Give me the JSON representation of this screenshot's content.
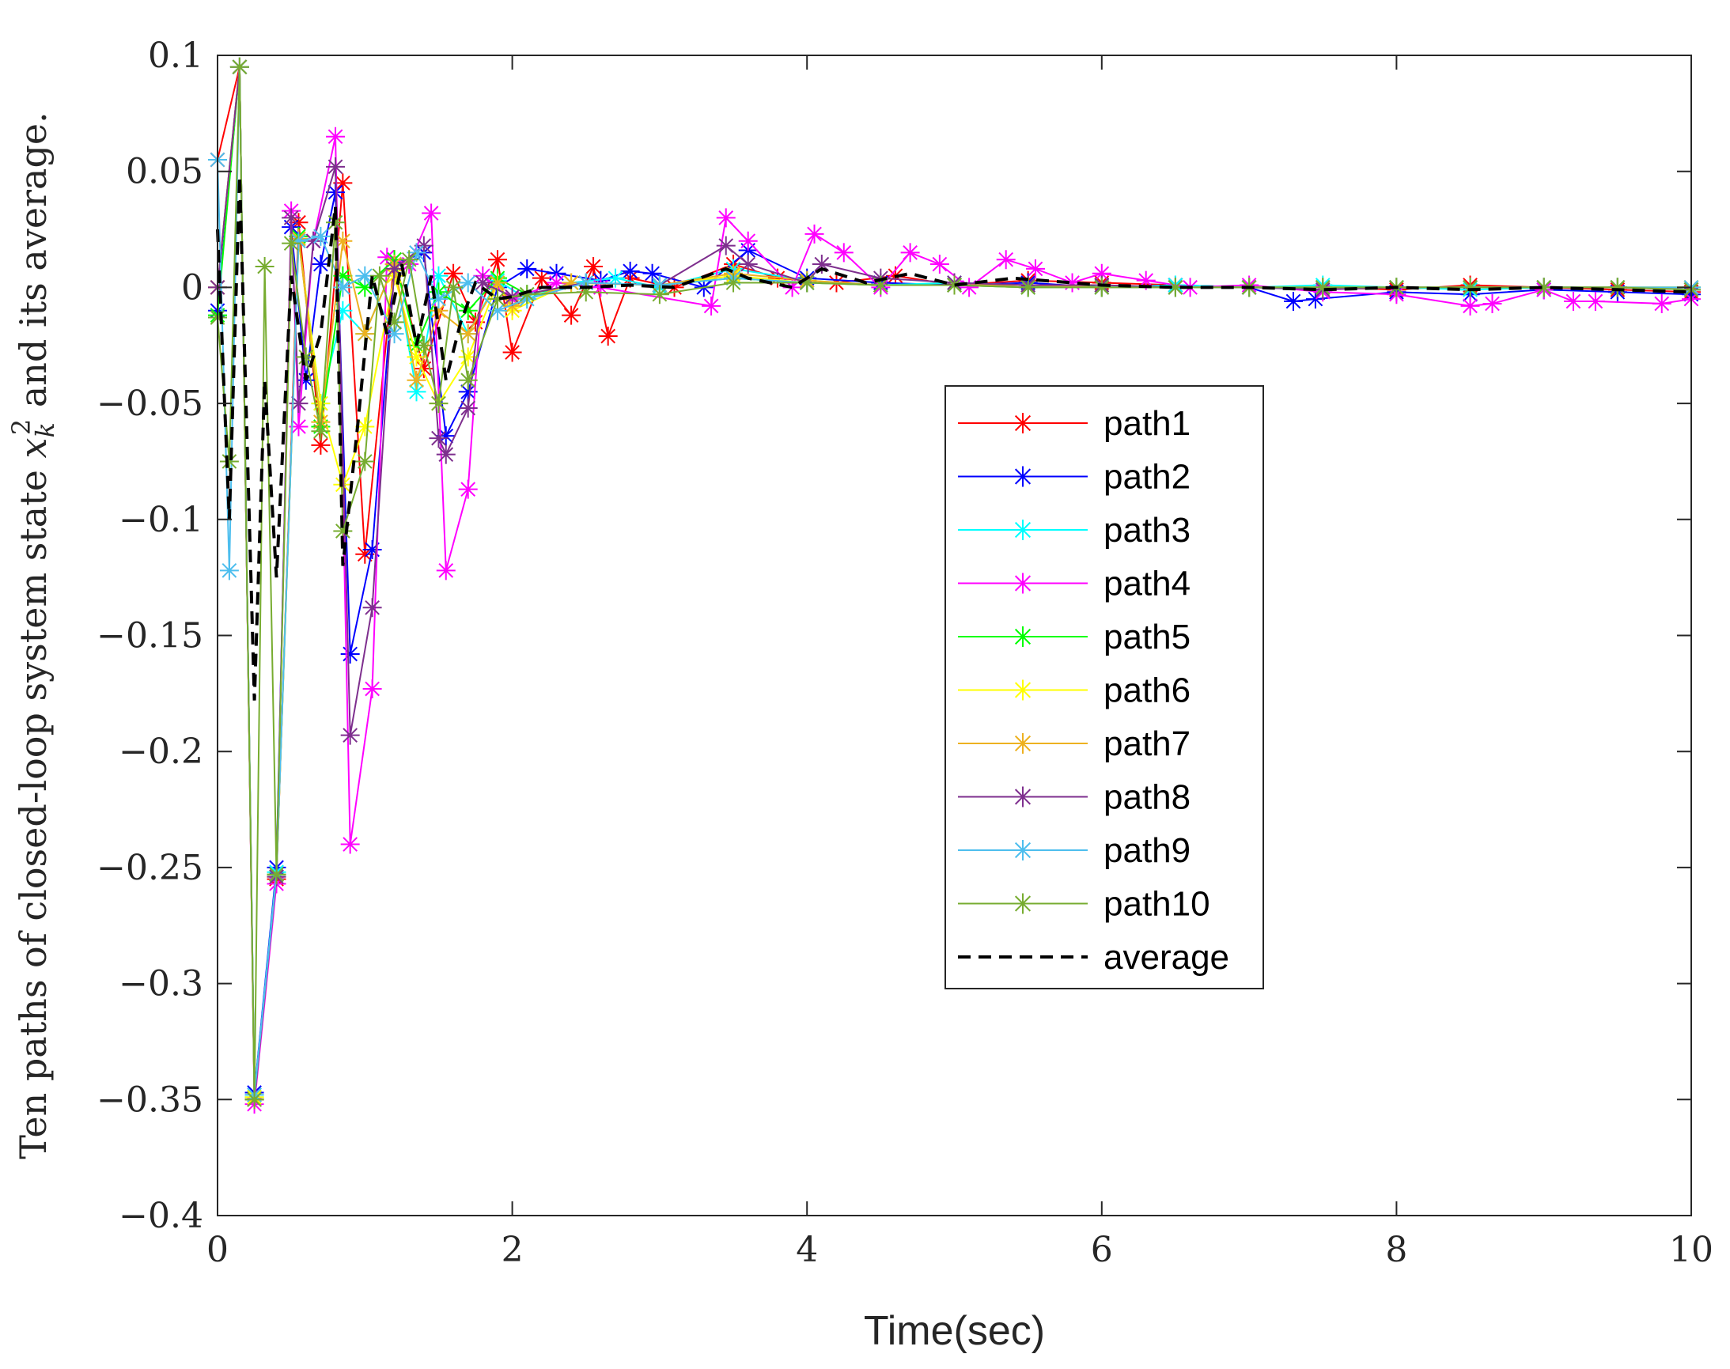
{
  "chart_data": {
    "type": "line",
    "title": "",
    "xlabel": "Time(sec)",
    "ylabel": {
      "before": "Ten paths of closed-loop system state ",
      "var": "x",
      "sub": "k",
      "sup": "2",
      "after": " and its average."
    },
    "xlim": [
      0,
      10
    ],
    "ylim": [
      -0.4,
      0.1
    ],
    "xticks": [
      0,
      2,
      4,
      6,
      8,
      10
    ],
    "xtick_labels": [
      "0",
      "2",
      "4",
      "6",
      "8",
      "10"
    ],
    "yticks": [
      0.1,
      0.05,
      0,
      -0.05,
      -0.1,
      -0.15,
      -0.2,
      -0.25,
      -0.3,
      -0.35,
      -0.4
    ],
    "ytick_labels": [
      "0.1",
      "0.05",
      "0",
      "−0.05",
      "−0.1",
      "−0.15",
      "−0.2",
      "−0.25",
      "−0.3",
      "−0.35",
      "−0.4"
    ],
    "grid": false,
    "legend_position": "center-right",
    "series": [
      {
        "name": "path1",
        "color": "#ff0000",
        "marker": "asterisk",
        "x": [
          0.0,
          0.15,
          0.25,
          0.4,
          0.55,
          0.7,
          0.85,
          1.0,
          1.2,
          1.4,
          1.6,
          1.75,
          1.9,
          2.0,
          2.2,
          2.4,
          2.55,
          2.65,
          2.8,
          3.1,
          3.5,
          3.8,
          4.2,
          4.6,
          5.0,
          5.5,
          6.0,
          6.5,
          7.0,
          7.5,
          8.0,
          8.5,
          9.0,
          9.5,
          10.0
        ],
        "y": [
          0.055,
          0.095,
          -0.35,
          -0.255,
          0.028,
          -0.068,
          0.045,
          -0.115,
          0.012,
          -0.035,
          0.006,
          -0.015,
          0.012,
          -0.028,
          0.004,
          -0.012,
          0.009,
          -0.021,
          0.004,
          0.0,
          0.01,
          0.004,
          0.002,
          0.005,
          0.001,
          0.003,
          0.002,
          0.001,
          0.0,
          0.0,
          -0.001,
          0.001,
          0.0,
          -0.001,
          -0.002
        ]
      },
      {
        "name": "path2",
        "color": "#0000ff",
        "marker": "asterisk",
        "x": [
          0.0,
          0.15,
          0.25,
          0.4,
          0.5,
          0.6,
          0.7,
          0.8,
          0.9,
          1.05,
          1.2,
          1.4,
          1.55,
          1.7,
          1.9,
          2.1,
          2.3,
          2.6,
          2.8,
          2.95,
          3.3,
          3.6,
          4.0,
          4.5,
          5.0,
          5.5,
          6.0,
          6.5,
          7.0,
          7.3,
          7.45,
          8.0,
          8.5,
          9.0,
          9.5,
          10.0
        ],
        "y": [
          -0.01,
          0.095,
          -0.347,
          -0.25,
          0.026,
          -0.04,
          0.01,
          0.041,
          -0.158,
          -0.113,
          0.01,
          0.015,
          -0.064,
          -0.045,
          0.0,
          0.008,
          0.006,
          0.003,
          0.007,
          0.006,
          0.0,
          0.016,
          0.004,
          0.002,
          0.001,
          0.002,
          0.0,
          0.001,
          0.0,
          -0.006,
          -0.005,
          -0.002,
          -0.003,
          -0.001,
          -0.002,
          -0.003
        ]
      },
      {
        "name": "path3",
        "color": "#00ffff",
        "marker": "asterisk",
        "x": [
          0.0,
          0.15,
          0.25,
          0.4,
          0.55,
          0.7,
          0.85,
          1.0,
          1.2,
          1.35,
          1.5,
          1.7,
          1.9,
          2.1,
          2.4,
          2.7,
          3.0,
          3.5,
          4.0,
          4.5,
          5.0,
          5.5,
          6.0,
          6.5,
          7.0,
          7.5,
          8.0,
          8.5,
          9.0,
          9.5,
          10.0
        ],
        "y": [
          0.0,
          0.095,
          -0.348,
          -0.252,
          0.02,
          -0.05,
          -0.01,
          -0.02,
          0.01,
          -0.045,
          0.005,
          -0.02,
          0.003,
          -0.005,
          0.002,
          0.004,
          0.0,
          0.008,
          0.003,
          0.001,
          0.002,
          0.001,
          0.0,
          0.001,
          0.0,
          0.001,
          0.0,
          -0.001,
          0.0,
          0.0,
          -0.001
        ]
      },
      {
        "name": "path4",
        "color": "#ff00ff",
        "marker": "asterisk",
        "x": [
          0.0,
          0.15,
          0.25,
          0.4,
          0.5,
          0.55,
          0.65,
          0.8,
          0.9,
          1.05,
          1.15,
          1.3,
          1.45,
          1.55,
          1.7,
          1.8,
          2.0,
          2.3,
          2.6,
          3.35,
          3.45,
          3.6,
          3.9,
          4.05,
          4.25,
          4.5,
          4.7,
          4.9,
          5.1,
          5.35,
          5.55,
          5.8,
          6.0,
          6.3,
          6.6,
          7.0,
          7.5,
          8.0,
          8.5,
          8.65,
          9.0,
          9.2,
          9.35,
          9.8,
          10.0
        ],
        "y": [
          0.0,
          0.095,
          -0.352,
          -0.257,
          0.033,
          -0.06,
          0.02,
          0.065,
          -0.24,
          -0.173,
          0.013,
          0.01,
          0.032,
          -0.122,
          -0.087,
          0.005,
          -0.005,
          0.002,
          0.0,
          -0.008,
          0.03,
          0.02,
          0.0,
          0.023,
          0.015,
          0.0,
          0.015,
          0.01,
          0.0,
          0.012,
          0.008,
          0.002,
          0.006,
          0.003,
          0.0,
          0.001,
          -0.002,
          -0.003,
          -0.008,
          -0.007,
          -0.001,
          -0.006,
          -0.006,
          -0.007,
          -0.005
        ]
      },
      {
        "name": "path5",
        "color": "#00ff00",
        "marker": "asterisk",
        "x": [
          0.0,
          0.15,
          0.25,
          0.4,
          0.55,
          0.7,
          0.85,
          1.0,
          1.2,
          1.35,
          1.5,
          1.7,
          1.9,
          2.1,
          2.5,
          3.0,
          3.5,
          4.0,
          4.5,
          5.0,
          5.5,
          6.0,
          6.5,
          7.0,
          7.5,
          8.0,
          8.5,
          9.0,
          9.5,
          10.0
        ],
        "y": [
          -0.012,
          0.095,
          -0.349,
          -0.253,
          0.022,
          -0.06,
          0.005,
          0.0,
          0.012,
          -0.025,
          -0.002,
          -0.01,
          0.004,
          -0.003,
          0.002,
          0.001,
          0.004,
          0.002,
          0.001,
          0.001,
          0.0,
          0.001,
          0.0,
          0.0,
          0.0,
          0.0,
          0.0,
          0.0,
          0.0,
          0.0
        ]
      },
      {
        "name": "path6",
        "color": "#ffff00",
        "marker": "asterisk",
        "x": [
          0.0,
          0.15,
          0.25,
          0.4,
          0.55,
          0.7,
          0.85,
          1.0,
          1.2,
          1.35,
          1.5,
          1.7,
          1.9,
          2.0,
          2.4,
          3.0,
          3.5,
          4.0,
          4.5,
          5.0,
          5.5,
          6.0,
          6.5,
          7.0,
          7.5,
          8.0,
          8.5,
          9.0,
          9.5,
          10.0
        ],
        "y": [
          0.0,
          0.095,
          -0.349,
          -0.253,
          0.02,
          -0.05,
          -0.085,
          -0.06,
          0.005,
          -0.03,
          -0.05,
          -0.03,
          0.002,
          -0.01,
          0.002,
          0.001,
          0.005,
          0.002,
          0.001,
          0.001,
          0.0,
          0.0,
          0.0,
          0.0,
          0.0,
          0.0,
          0.0,
          0.0,
          0.0,
          0.0
        ]
      },
      {
        "name": "path7",
        "color": "#edb120",
        "marker": "asterisk",
        "x": [
          0.0,
          0.15,
          0.25,
          0.4,
          0.55,
          0.7,
          0.85,
          1.0,
          1.2,
          1.35,
          1.5,
          1.7,
          1.9,
          2.0,
          2.4,
          3.0,
          3.5,
          4.0,
          4.5,
          5.0,
          5.5,
          6.0,
          6.5,
          7.0,
          7.5,
          8.0,
          8.5,
          9.0,
          9.5,
          10.0
        ],
        "y": [
          0.0,
          0.095,
          -0.35,
          -0.254,
          0.021,
          -0.058,
          0.02,
          -0.02,
          0.01,
          -0.04,
          -0.01,
          -0.02,
          0.002,
          -0.008,
          0.002,
          0.001,
          0.006,
          0.003,
          0.001,
          0.001,
          0.001,
          0.0,
          0.0,
          0.0,
          0.0,
          0.0,
          0.0,
          0.0,
          0.0,
          0.0
        ]
      },
      {
        "name": "path8",
        "color": "#7e2f8e",
        "marker": "asterisk",
        "x": [
          0.0,
          0.15,
          0.25,
          0.4,
          0.5,
          0.55,
          0.65,
          0.8,
          0.9,
          1.05,
          1.2,
          1.4,
          1.5,
          1.55,
          1.7,
          1.8,
          2.0,
          2.5,
          3.0,
          3.45,
          3.6,
          4.0,
          4.1,
          4.5,
          5.0,
          5.5,
          6.0,
          6.5,
          7.0,
          7.5,
          8.0,
          8.5,
          9.0,
          9.5,
          10.0
        ],
        "y": [
          0.0,
          0.095,
          -0.35,
          -0.254,
          0.03,
          -0.05,
          0.02,
          0.052,
          -0.193,
          -0.138,
          0.008,
          0.018,
          -0.065,
          -0.072,
          -0.052,
          0.002,
          -0.004,
          0.002,
          0.001,
          0.018,
          0.01,
          0.002,
          0.01,
          0.004,
          0.002,
          0.001,
          0.001,
          0.0,
          0.0,
          -0.001,
          0.0,
          0.0,
          0.0,
          0.0,
          -0.001
        ]
      },
      {
        "name": "path9",
        "color": "#4dbeee",
        "marker": "asterisk",
        "x": [
          0.0,
          0.08,
          0.15,
          0.25,
          0.4,
          0.55,
          0.7,
          0.85,
          1.0,
          1.2,
          1.35,
          1.5,
          1.7,
          1.9,
          2.1,
          2.5,
          3.0,
          3.5,
          4.0,
          4.5,
          5.0,
          5.5,
          6.0,
          6.5,
          7.0,
          7.5,
          8.0,
          8.5,
          9.0,
          9.5,
          10.0
        ],
        "y": [
          0.055,
          -0.122,
          0.095,
          -0.348,
          -0.253,
          0.02,
          0.022,
          0.0,
          0.005,
          -0.02,
          0.015,
          -0.005,
          0.002,
          -0.01,
          -0.005,
          0.002,
          0.001,
          0.004,
          0.002,
          0.001,
          0.001,
          0.0,
          0.0,
          0.0,
          0.0,
          0.0,
          0.0,
          0.0,
          0.0,
          0.0,
          0.0
        ]
      },
      {
        "name": "path10",
        "color": "#77ac30",
        "marker": "asterisk",
        "x": [
          0.0,
          0.08,
          0.15,
          0.25,
          0.32,
          0.4,
          0.5,
          0.6,
          0.7,
          0.8,
          0.85,
          1.0,
          1.1,
          1.2,
          1.3,
          1.4,
          1.5,
          1.6,
          1.7,
          1.9,
          2.1,
          2.5,
          3.0,
          3.5,
          4.0,
          4.5,
          5.0,
          5.5,
          6.0,
          6.5,
          7.0,
          7.5,
          8.0,
          8.5,
          9.0,
          9.5,
          10.0
        ],
        "y": [
          -0.013,
          -0.075,
          0.095,
          -0.35,
          0.009,
          -0.253,
          0.019,
          -0.03,
          -0.062,
          0.028,
          -0.105,
          -0.075,
          0.005,
          -0.015,
          0.012,
          -0.025,
          -0.05,
          0.0,
          -0.04,
          -0.005,
          -0.003,
          -0.002,
          -0.003,
          0.002,
          0.002,
          0.001,
          0.001,
          0.0,
          0.0,
          0.0,
          0.0,
          0.0,
          0.0,
          0.0,
          0.0,
          0.0,
          -0.001
        ]
      },
      {
        "name": "average",
        "color": "#000000",
        "marker": "none",
        "dash": true,
        "x": [
          0.0,
          0.08,
          0.15,
          0.25,
          0.32,
          0.4,
          0.5,
          0.6,
          0.7,
          0.8,
          0.85,
          0.95,
          1.05,
          1.15,
          1.25,
          1.35,
          1.45,
          1.55,
          1.65,
          1.75,
          1.9,
          2.0,
          2.2,
          2.5,
          2.8,
          3.1,
          3.45,
          3.6,
          3.9,
          4.1,
          4.4,
          4.7,
          5.0,
          5.4,
          6.0,
          6.5,
          7.0,
          7.5,
          8.0,
          8.5,
          9.0,
          9.5,
          10.0
        ],
        "y": [
          0.025,
          -0.1,
          0.048,
          -0.178,
          -0.04,
          -0.125,
          0.005,
          -0.04,
          -0.02,
          0.035,
          -0.12,
          -0.06,
          0.005,
          -0.02,
          0.01,
          -0.025,
          0.005,
          -0.04,
          -0.015,
          0.002,
          -0.005,
          -0.004,
          0.0,
          0.0,
          0.001,
          0.0,
          0.008,
          0.004,
          0.0,
          0.008,
          0.002,
          0.006,
          0.001,
          0.004,
          0.001,
          0.0,
          0.0,
          -0.001,
          0.0,
          -0.001,
          0.0,
          -0.001,
          -0.002
        ]
      }
    ]
  }
}
